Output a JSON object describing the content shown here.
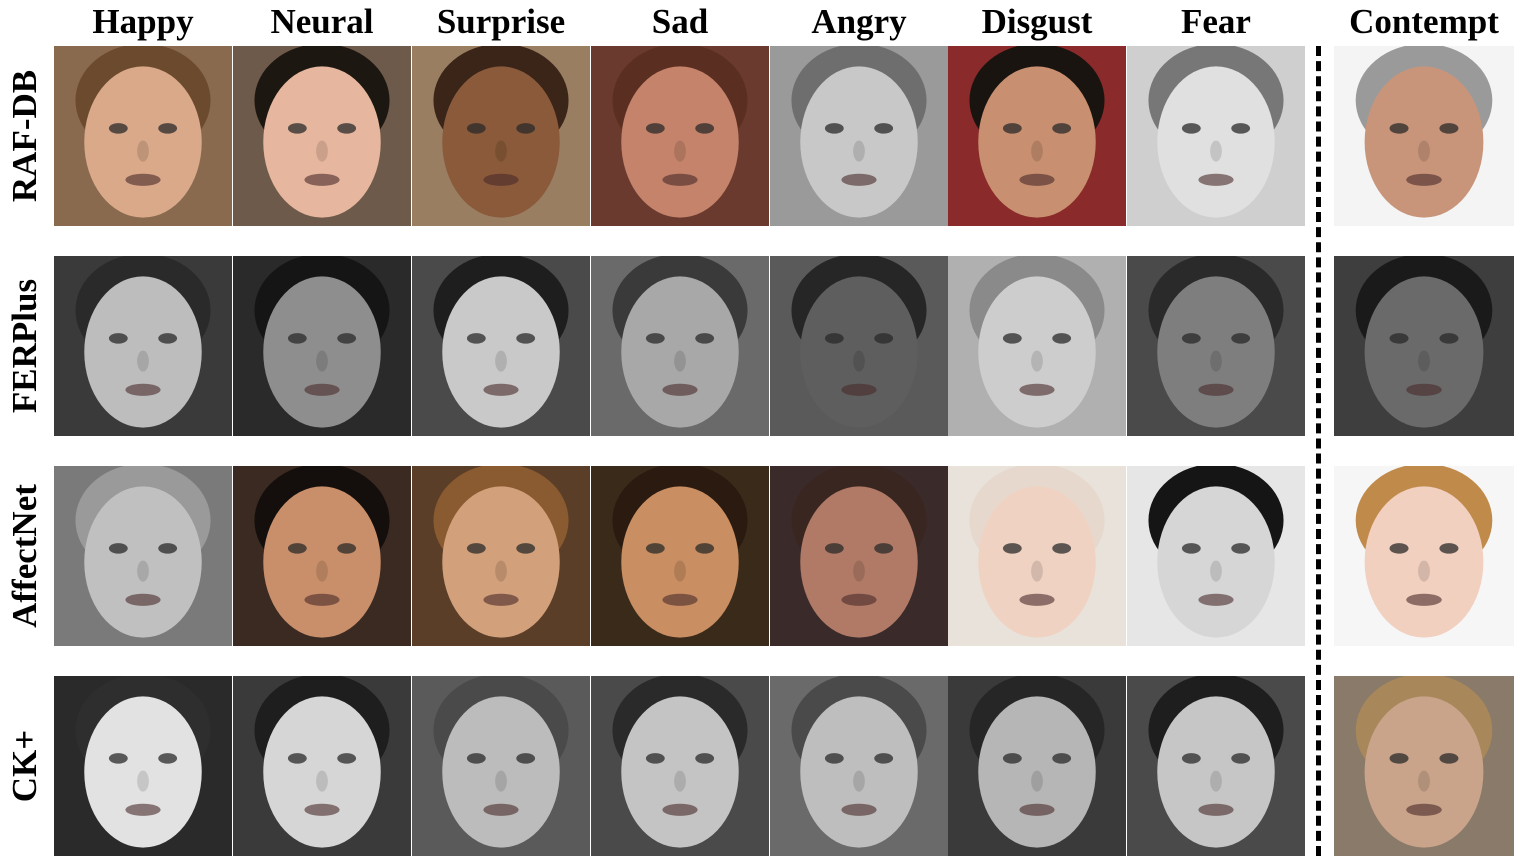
{
  "columns": [
    {
      "label": "Happy",
      "key": "happy"
    },
    {
      "label": "Neural",
      "key": "neural"
    },
    {
      "label": "Surprise",
      "key": "surprise"
    },
    {
      "label": "Sad",
      "key": "sad"
    },
    {
      "label": "Angry",
      "key": "angry"
    },
    {
      "label": "Disgust",
      "key": "disgust"
    },
    {
      "label": "Fear",
      "key": "fear"
    },
    {
      "label": "Contempt",
      "key": "contempt"
    }
  ],
  "rows": [
    {
      "label": "RAF-DB",
      "key": "rafdb",
      "tones": [
        {
          "bg": "#8a6a4e",
          "skin": "#d9a98a",
          "hair": "#6b4a2e"
        },
        {
          "bg": "#6e5a4a",
          "skin": "#e6b79e",
          "hair": "#1d1712"
        },
        {
          "bg": "#9a7e62",
          "skin": "#8a5a3a",
          "hair": "#3a2518"
        },
        {
          "bg": "#6a3a2e",
          "skin": "#c4836a",
          "hair": "#5a2e20"
        },
        {
          "bg": "#9a9a9a",
          "skin": "#c8c8c8",
          "hair": "#6e6e6e"
        },
        {
          "bg": "#8a2a2a",
          "skin": "#c89070",
          "hair": "#1a1410"
        },
        {
          "bg": "#cfcfcf",
          "skin": "#e0e0e0",
          "hair": "#777777"
        },
        {
          "bg": "#f4f4f4",
          "skin": "#c8957a",
          "hair": "#9a9a9a"
        }
      ]
    },
    {
      "label": "FERPlus",
      "key": "ferplus",
      "tones": [
        {
          "bg": "#3a3a3a",
          "skin": "#bdbdbd",
          "hair": "#2a2a2a"
        },
        {
          "bg": "#2a2a2a",
          "skin": "#8e8e8e",
          "hair": "#151515"
        },
        {
          "bg": "#4a4a4a",
          "skin": "#c9c9c9",
          "hair": "#1e1e1e"
        },
        {
          "bg": "#6a6a6a",
          "skin": "#a8a8a8",
          "hair": "#3a3a3a"
        },
        {
          "bg": "#5a5a5a",
          "skin": "#5e5e5e",
          "hair": "#262626"
        },
        {
          "bg": "#b0b0b0",
          "skin": "#cdcdcd",
          "hair": "#8a8a8a"
        },
        {
          "bg": "#4a4a4a",
          "skin": "#7e7e7e",
          "hair": "#2a2a2a"
        },
        {
          "bg": "#3e3e3e",
          "skin": "#6a6a6a",
          "hair": "#1a1a1a"
        }
      ]
    },
    {
      "label": "AffectNet",
      "key": "affectnet",
      "tones": [
        {
          "bg": "#7a7a7a",
          "skin": "#c0c0c0",
          "hair": "#9a9a9a"
        },
        {
          "bg": "#3a2a22",
          "skin": "#c98f6a",
          "hair": "#140f0c"
        },
        {
          "bg": "#5a3e28",
          "skin": "#d2a07a",
          "hair": "#8a5a30"
        },
        {
          "bg": "#3a2a1a",
          "skin": "#c98e62",
          "hair": "#2a1a10"
        },
        {
          "bg": "#3a2a2a",
          "skin": "#b07a66",
          "hair": "#3a2620"
        },
        {
          "bg": "#e8e2da",
          "skin": "#f0d2c2",
          "hair": "#e6d8cc"
        },
        {
          "bg": "#e6e6e6",
          "skin": "#d6d6d6",
          "hair": "#151515"
        },
        {
          "bg": "#f6f6f6",
          "skin": "#f2d0c0",
          "hair": "#c08a4a"
        }
      ]
    },
    {
      "label": "CK+",
      "key": "ckplus",
      "tones": [
        {
          "bg": "#2a2a2a",
          "skin": "#e2e2e2",
          "hair": "#2e2e2e"
        },
        {
          "bg": "#3a3a3a",
          "skin": "#d6d6d6",
          "hair": "#1e1e1e"
        },
        {
          "bg": "#5a5a5a",
          "skin": "#bcbcbc",
          "hair": "#4a4a4a"
        },
        {
          "bg": "#4a4a4a",
          "skin": "#c4c4c4",
          "hair": "#2a2a2a"
        },
        {
          "bg": "#6a6a6a",
          "skin": "#bebebe",
          "hair": "#4a4a4a"
        },
        {
          "bg": "#3a3a3a",
          "skin": "#b6b6b6",
          "hair": "#262626"
        },
        {
          "bg": "#4a4a4a",
          "skin": "#c6c6c6",
          "hair": "#1e1e1e"
        },
        {
          "bg": "#8a7a6a",
          "skin": "#c9a48a",
          "hair": "#a8885a"
        }
      ]
    }
  ],
  "divider_before_column": "contempt"
}
